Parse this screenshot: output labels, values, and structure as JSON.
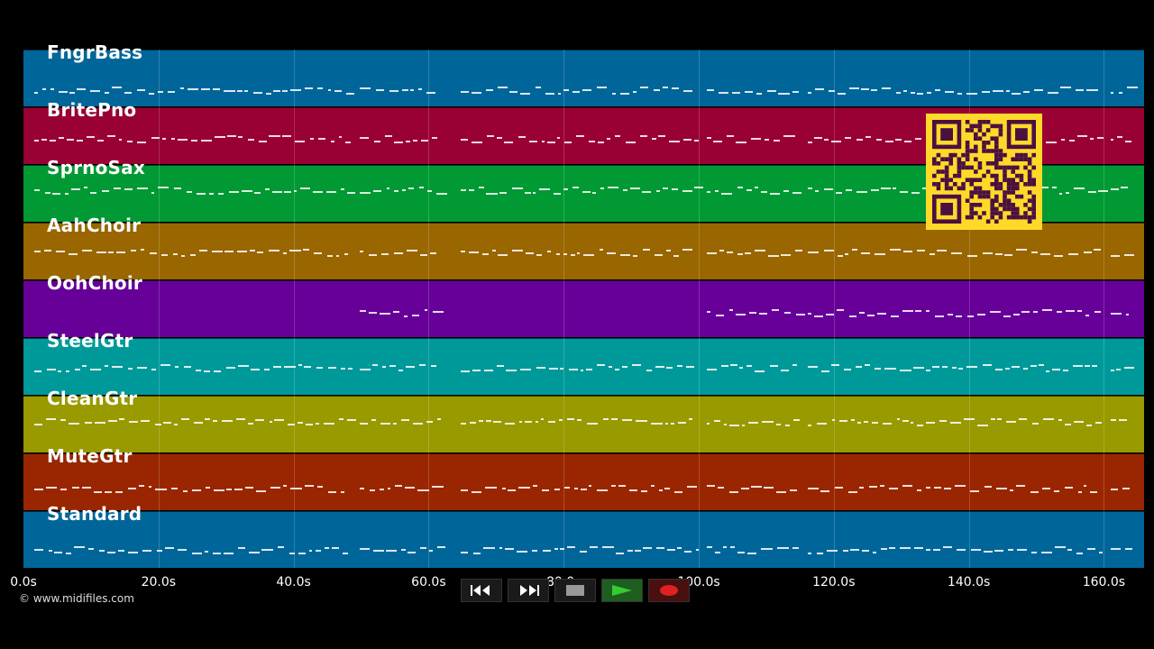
{
  "app": {
    "copyright": "© www.midifiles.com"
  },
  "tracks": [
    {
      "name": "FngrBass",
      "color": "#006699"
    },
    {
      "name": "BritePno",
      "color": "#990033"
    },
    {
      "name": "SprnoSax",
      "color": "#009933"
    },
    {
      "name": "AahChoir",
      "color": "#996600"
    },
    {
      "name": "OohChoir",
      "color": "#660099"
    },
    {
      "name": "SteelGtr",
      "color": "#009999"
    },
    {
      "name": "CleanGtr",
      "color": "#999900"
    },
    {
      "name": "MuteGtr",
      "color": "#992600"
    },
    {
      "name": "Standard",
      "color": "#006699"
    }
  ],
  "timeline": {
    "ticks": [
      "0.0s",
      "20.0s",
      "40.0s",
      "60.0s",
      "80.0s",
      "100.0s",
      "120.0s",
      "140.0s",
      "160.0s"
    ]
  },
  "transport": {
    "rewind_icon": "rewind-icon",
    "fast_forward_icon": "fast-forward-icon",
    "stop_icon": "stop-icon",
    "play_icon": "play-icon",
    "record_icon": "record-icon",
    "play_color": "#33cc33",
    "record_color": "#dd2222"
  },
  "qr": {
    "color": "#ffd92a",
    "dark": "#4a1040"
  }
}
